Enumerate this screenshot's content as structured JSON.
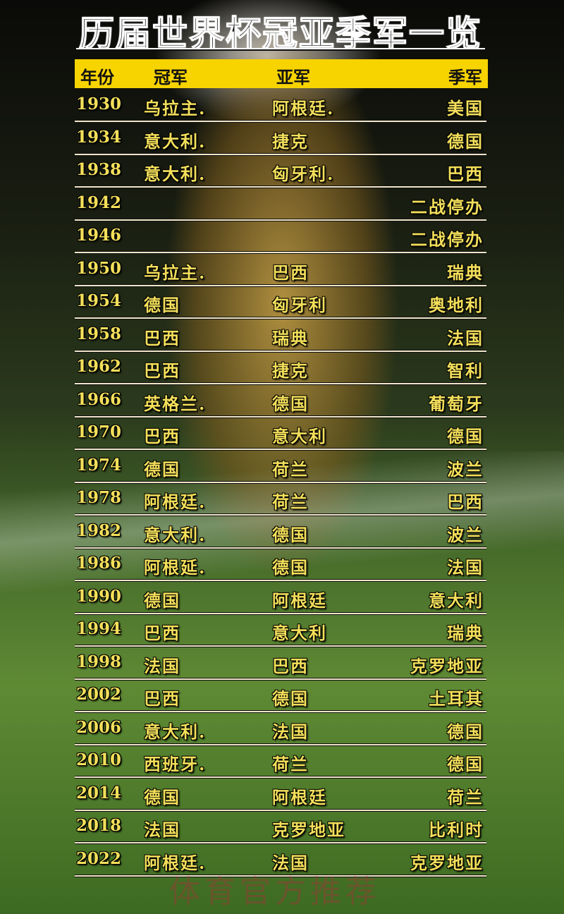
{
  "title": "历届世界杯冠亚季军一览",
  "columns": {
    "year": "年份",
    "champion": "冠军",
    "runner_up": "亚军",
    "third": "季军"
  },
  "rows": [
    {
      "year": "1930",
      "champion": "乌拉主.",
      "runner_up": "阿根廷.",
      "third": "美国"
    },
    {
      "year": "1934",
      "champion": "意大利.",
      "runner_up": "捷克",
      "third": "德国"
    },
    {
      "year": "1938",
      "champion": "意大利.",
      "runner_up": "匈牙利.",
      "third": "巴西"
    },
    {
      "year": "1942",
      "champion": "",
      "runner_up": "",
      "third": "二战停办"
    },
    {
      "year": "1946",
      "champion": "",
      "runner_up": "",
      "third": "二战停办"
    },
    {
      "year": "1950",
      "champion": "乌拉主.",
      "runner_up": "巴西",
      "third": "瑞典"
    },
    {
      "year": "1954",
      "champion": "德国",
      "runner_up": "匈牙利",
      "third": "奥地利"
    },
    {
      "year": "1958",
      "champion": "巴西",
      "runner_up": "瑞典",
      "third": "法国"
    },
    {
      "year": "1962",
      "champion": "巴西",
      "runner_up": "捷克",
      "third": "智利"
    },
    {
      "year": "1966",
      "champion": "英格兰.",
      "runner_up": "德国",
      "third": "葡萄牙"
    },
    {
      "year": "1970",
      "champion": "巴西",
      "runner_up": "意大利",
      "third": "德国"
    },
    {
      "year": "1974",
      "champion": "德国",
      "runner_up": "荷兰",
      "third": "波兰"
    },
    {
      "year": "1978",
      "champion": "阿根廷.",
      "runner_up": "荷兰",
      "third": "巴西"
    },
    {
      "year": "1982",
      "champion": "意大利.",
      "runner_up": "德国",
      "third": "波兰"
    },
    {
      "year": "1986",
      "champion": "阿根延.",
      "runner_up": "德国",
      "third": "法国"
    },
    {
      "year": "1990",
      "champion": "德国",
      "runner_up": "阿根廷",
      "third": "意大利"
    },
    {
      "year": "1994",
      "champion": "巴西",
      "runner_up": "意大利",
      "third": "瑞典"
    },
    {
      "year": "1998",
      "champion": "法国",
      "runner_up": "巴西",
      "third": "克罗地亚"
    },
    {
      "year": "2002",
      "champion": "巴西",
      "runner_up": "德国",
      "third": "土耳其"
    },
    {
      "year": "2006",
      "champion": "意大利.",
      "runner_up": "法国",
      "third": "德国"
    },
    {
      "year": "2010",
      "champion": "西班牙.",
      "runner_up": "荷兰",
      "third": "德国"
    },
    {
      "year": "2014",
      "champion": "德国",
      "runner_up": "阿根廷",
      "third": "荷兰"
    },
    {
      "year": "2018",
      "champion": "法国",
      "runner_up": "克罗地亚",
      "third": "比利时"
    },
    {
      "year": "2022",
      "champion": "阿根廷.",
      "runner_up": "法国",
      "third": "克罗地亚"
    }
  ],
  "watermark": "体育官方推荐",
  "colors": {
    "header_bg": "#f7d300",
    "row_text": "#f3df5a"
  }
}
